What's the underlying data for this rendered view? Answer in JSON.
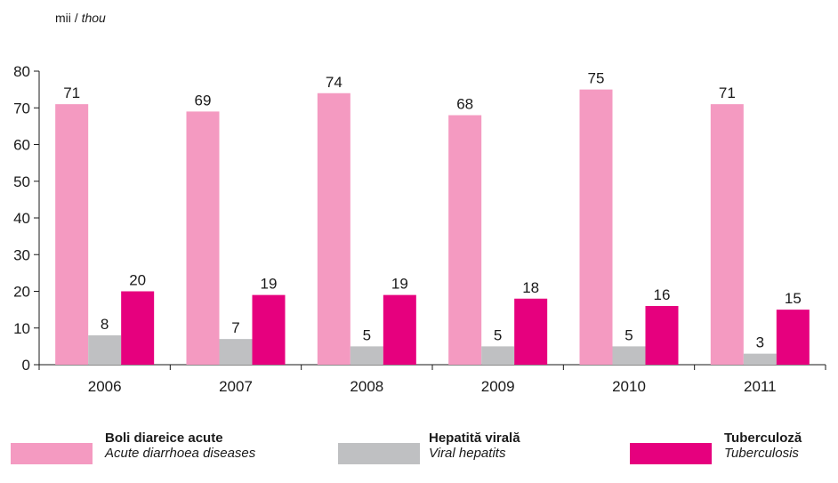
{
  "unit": {
    "ro": "mii",
    "separator": " / ",
    "en": "thou"
  },
  "colors": {
    "diarrhoea": "#f49ac1",
    "hepatitis": "#bfc0c2",
    "tuberculosis": "#e6007e",
    "axis": "#1a1a1a"
  },
  "chart_data": {
    "type": "bar",
    "categories": [
      "2006",
      "2007",
      "2008",
      "2009",
      "2010",
      "2011"
    ],
    "series": [
      {
        "name": "Boli diareice acute / Acute diarrhoea diseases",
        "values": [
          71,
          69,
          74,
          68,
          75,
          71
        ]
      },
      {
        "name": "Hepatită virală / Viral hepatits",
        "values": [
          8,
          7,
          5,
          5,
          5,
          3
        ]
      },
      {
        "name": "Tuberculoză / Tuberculosis",
        "values": [
          20,
          19,
          19,
          18,
          16,
          15
        ]
      }
    ],
    "yticks": [
      0,
      10,
      20,
      30,
      40,
      50,
      60,
      70,
      80
    ],
    "ylim": [
      0,
      80
    ],
    "data_labels": true,
    "grid": false,
    "legend_position": "bottom"
  },
  "legend": [
    {
      "ro": "Boli diareice acute",
      "en": "Acute diarrhoea diseases",
      "color": "#f49ac1"
    },
    {
      "ro": "Hepatită virală",
      "en": "Viral hepatits",
      "color": "#bfc0c2"
    },
    {
      "ro": "Tuberculoză",
      "en": "Tuberculosis",
      "color": "#e6007e"
    }
  ]
}
